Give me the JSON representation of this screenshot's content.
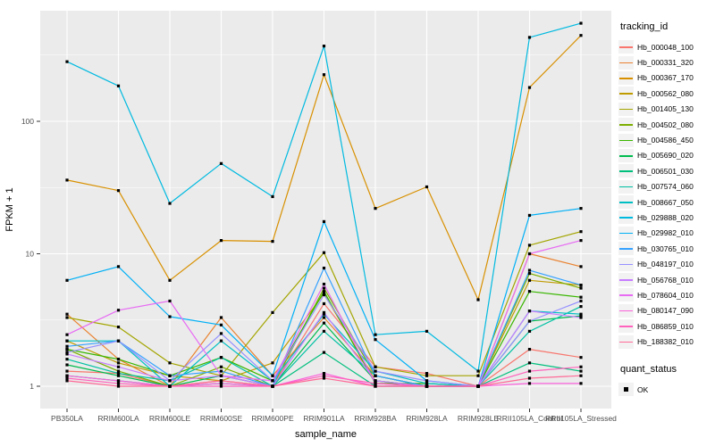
{
  "figure": {
    "background": "#FFFFFF",
    "panel_background": "#EBEBEB",
    "gridline_color": "#FFFFFF",
    "tick_color": "#333333",
    "tick_label_color": "#4D4D4D",
    "point_color": "#000000"
  },
  "chart_data": {
    "type": "line",
    "title": "",
    "xlabel": "sample_name",
    "ylabel": "FPKM + 1",
    "y_scale": "log10",
    "y_ticks": [
      1,
      10,
      100
    ],
    "y_minor_ticks": [
      3.162,
      31.62,
      316.2
    ],
    "ylim": [
      1,
      660
    ],
    "grid": "major-and-minor-horizontal, major-vertical",
    "legend_position": "right",
    "legend_title": "tracking_id",
    "categories": [
      "PB350LA",
      "RRIM600LA",
      "RRIM600LE",
      "RRIM600SE",
      "RRIM600PE",
      "RRIM901LA",
      "RRIM928BA",
      "RRIM928LA",
      "RRIM928LE",
      "RRII105LA_Control",
      "RRII105LA_Stressed"
    ],
    "series": [
      {
        "name": "Hb_000048_100",
        "color": "#F8766D",
        "values": [
          1.3,
          1.25,
          1.0,
          1.1,
          1.0,
          4.2,
          1.4,
          1.25,
          1.0,
          1.9,
          1.65
        ]
      },
      {
        "name": "Hb_000331_320",
        "color": "#EA8331",
        "values": [
          3.5,
          1.6,
          1.0,
          3.3,
          1.2,
          3.3,
          1.2,
          1.0,
          1.0,
          10.0,
          8.0
        ]
      },
      {
        "name": "Hb_000367_170",
        "color": "#D89000",
        "values": [
          36,
          30,
          6.3,
          12.6,
          12.4,
          225,
          22,
          32,
          4.5,
          180,
          445
        ]
      },
      {
        "name": "Hb_000562_080",
        "color": "#C09B00",
        "values": [
          2.2,
          1.5,
          1.2,
          1.1,
          1.5,
          5.0,
          1.1,
          1.0,
          1.0,
          6.3,
          5.8
        ]
      },
      {
        "name": "Hb_001405_130",
        "color": "#A3A500",
        "values": [
          3.3,
          2.8,
          1.5,
          1.2,
          3.6,
          10.2,
          1.4,
          1.2,
          1.2,
          11.6,
          14.7
        ]
      },
      {
        "name": "Hb_004502_080",
        "color": "#7CAE00",
        "values": [
          1.9,
          1.3,
          1.0,
          1.4,
          1.0,
          5.5,
          1.2,
          1.0,
          1.0,
          7.1,
          5.5
        ]
      },
      {
        "name": "Hb_004586_450",
        "color": "#39B600",
        "values": [
          1.9,
          1.6,
          1.2,
          1.65,
          1.1,
          5.2,
          1.05,
          1.05,
          1.0,
          5.2,
          4.7
        ]
      },
      {
        "name": "Hb_005690_020",
        "color": "#00BB4E",
        "values": [
          1.45,
          1.2,
          1.0,
          1.2,
          1.0,
          3.0,
          1.1,
          1.0,
          1.0,
          3.1,
          3.4
        ]
      },
      {
        "name": "Hb_006501_030",
        "color": "#00BF7D",
        "values": [
          1.2,
          1.1,
          1.0,
          1.05,
          1.0,
          1.8,
          1.0,
          1.0,
          1.0,
          1.5,
          1.3
        ]
      },
      {
        "name": "Hb_007574_060",
        "color": "#00C1A3",
        "values": [
          1.6,
          1.25,
          1.1,
          1.65,
          1.0,
          2.6,
          1.2,
          1.0,
          1.0,
          2.6,
          4.0
        ]
      },
      {
        "name": "Hb_008667_050",
        "color": "#00BFC4",
        "values": [
          2.2,
          2.2,
          1.0,
          2.2,
          1.1,
          3.5,
          1.3,
          1.05,
          1.0,
          3.7,
          3.5
        ]
      },
      {
        "name": "Hb_029888_020",
        "color": "#00BAE0",
        "values": [
          282,
          185,
          24,
          48,
          27,
          370,
          2.45,
          2.6,
          1.3,
          430,
          550
        ]
      },
      {
        "name": "Hb_029982_010",
        "color": "#00B0F6",
        "values": [
          6.3,
          8.0,
          3.35,
          2.9,
          1.2,
          17.5,
          2.25,
          1.1,
          1.0,
          19.5,
          22
        ]
      },
      {
        "name": "Hb_030765_010",
        "color": "#35A2FF",
        "values": [
          2.0,
          2.2,
          1.2,
          1.3,
          1.0,
          7.8,
          1.2,
          1.0,
          1.0,
          7.5,
          5.8
        ]
      },
      {
        "name": "Hb_048197_010",
        "color": "#9590FF",
        "values": [
          1.8,
          2.2,
          1.1,
          2.5,
          1.1,
          4.9,
          1.3,
          1.1,
          1.0,
          3.1,
          4.4
        ]
      },
      {
        "name": "Hb_056768_010",
        "color": "#C77CFF",
        "values": [
          1.75,
          1.4,
          1.1,
          1.2,
          1.0,
          3.6,
          1.1,
          1.0,
          1.0,
          3.7,
          3.3
        ]
      },
      {
        "name": "Hb_078604_010",
        "color": "#E76BF3",
        "values": [
          2.45,
          3.75,
          4.4,
          1.2,
          1.1,
          5.9,
          1.05,
          1.0,
          1.0,
          10.0,
          12.6
        ]
      },
      {
        "name": "Hb_080147_090",
        "color": "#FA62DB",
        "values": [
          1.2,
          1.1,
          1.0,
          1.05,
          1.0,
          1.25,
          1.0,
          1.0,
          1.0,
          1.05,
          1.05
        ]
      },
      {
        "name": "Hb_086859_010",
        "color": "#FF62BC",
        "values": [
          1.15,
          1.05,
          1.0,
          1.0,
          1.0,
          1.2,
          1.05,
          1.0,
          1.0,
          1.3,
          1.4
        ]
      },
      {
        "name": "Hb_188382_010",
        "color": "#FF6A98",
        "values": [
          1.1,
          1.0,
          1.0,
          1.1,
          1.0,
          1.15,
          1.0,
          1.0,
          1.0,
          1.15,
          1.2
        ]
      }
    ],
    "quant_legend": {
      "title": "quant_status",
      "items": [
        {
          "label": "OK",
          "marker": "black-square"
        }
      ]
    }
  }
}
